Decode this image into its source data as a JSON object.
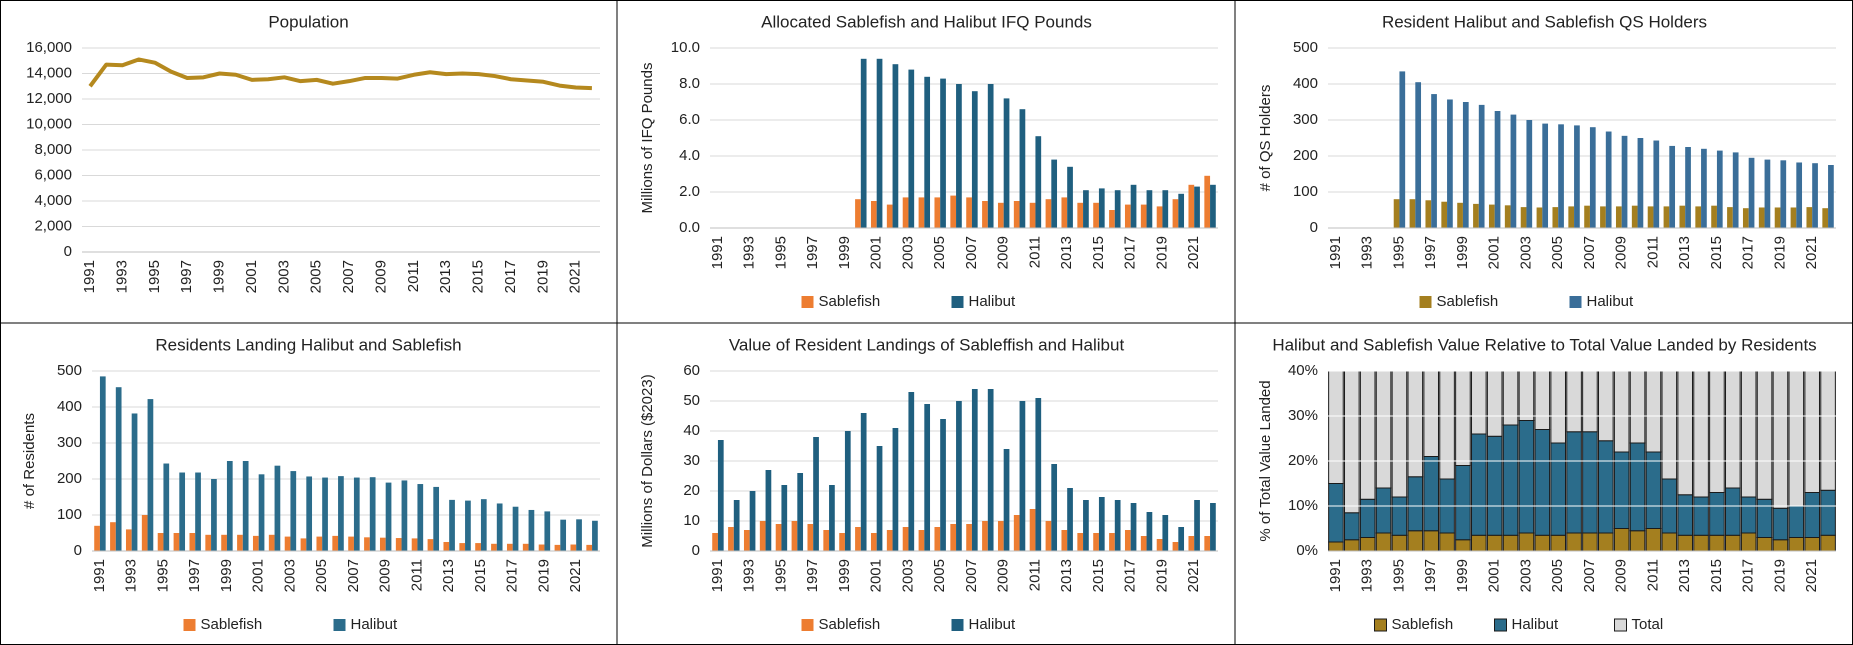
{
  "chart_data": [
    {
      "type": "line",
      "title": "Population",
      "categories": [
        1991,
        null,
        1993,
        null,
        1995,
        null,
        1997,
        null,
        1999,
        null,
        2001,
        null,
        2003,
        null,
        2005,
        null,
        2007,
        null,
        2009,
        null,
        2011,
        null,
        2013,
        null,
        2015,
        null,
        2017,
        null,
        2019,
        null,
        2021,
        null
      ],
      "series": [
        {
          "name": "Population",
          "color": "#b5891e",
          "values": [
            13000,
            14700,
            14650,
            15100,
            14850,
            14150,
            13650,
            13700,
            14000,
            13900,
            13500,
            13550,
            13700,
            13400,
            13500,
            13200,
            13400,
            13650,
            13650,
            13600,
            13900,
            14100,
            13950,
            14000,
            13950,
            13800,
            13550,
            13450,
            13350,
            13050,
            12900,
            12850
          ]
        }
      ],
      "ylim": [
        0,
        16000
      ],
      "yticks": [
        0,
        {
          "value": 2000,
          "label": "2,000"
        },
        {
          "value": 4000,
          "label": "4,000"
        },
        {
          "value": 6000,
          "label": "6,000"
        },
        {
          "value": 8000,
          "label": "8,000"
        },
        {
          "value": 10000,
          "label": "10,000"
        },
        {
          "value": 12000,
          "label": "12,000"
        },
        {
          "value": 14000,
          "label": "14,000"
        },
        {
          "value": 16000,
          "label": "16,000"
        }
      ],
      "grid": true,
      "grid_color": "#d9d9d9"
    },
    {
      "type": "bar",
      "title": "Allocated Sablefish and Halibut IFQ Pounds",
      "ylabel": "Millions of IFQ Pounds",
      "categories": [
        1991,
        null,
        1993,
        null,
        1995,
        null,
        1997,
        null,
        1999,
        null,
        2001,
        null,
        2003,
        null,
        2005,
        null,
        2007,
        null,
        2009,
        null,
        2011,
        null,
        2013,
        null,
        2015,
        null,
        2017,
        null,
        2019,
        null,
        2021,
        null
      ],
      "series": [
        {
          "name": "Sablefish",
          "color": "#ed7d31",
          "values": [
            null,
            null,
            null,
            null,
            null,
            null,
            null,
            null,
            null,
            1.6,
            1.5,
            1.3,
            1.7,
            1.7,
            1.7,
            1.8,
            1.7,
            1.5,
            1.4,
            1.5,
            1.4,
            1.6,
            1.7,
            1.4,
            1.4,
            1.0,
            1.3,
            1.3,
            1.2,
            1.6,
            2.4,
            2.9
          ]
        },
        {
          "name": "Halibut",
          "color": "#1f5f7f",
          "values": [
            null,
            null,
            null,
            null,
            null,
            null,
            null,
            null,
            null,
            9.4,
            9.4,
            9.1,
            8.8,
            8.4,
            8.3,
            8.0,
            7.6,
            8.0,
            7.2,
            6.6,
            5.1,
            3.8,
            3.4,
            2.1,
            2.2,
            2.1,
            2.4,
            2.1,
            2.1,
            1.9,
            2.3,
            2.4
          ]
        }
      ],
      "ylim": [
        0,
        10
      ],
      "yticks": [
        {
          "value": 0,
          "label": "0.0"
        },
        {
          "value": 2,
          "label": "2.0"
        },
        {
          "value": 4,
          "label": "4.0"
        },
        {
          "value": 6,
          "label": "6.0"
        },
        {
          "value": 8,
          "label": "8.0"
        },
        {
          "value": 10,
          "label": "10.0"
        }
      ],
      "grid": true,
      "grid_color": "#d9d9d9",
      "legend": "bottom"
    },
    {
      "type": "bar",
      "title": "Resident Halibut and Sablefish QS Holders",
      "ylabel": "# of QS Holders",
      "categories": [
        1991,
        null,
        1993,
        null,
        1995,
        null,
        1997,
        null,
        1999,
        null,
        2001,
        null,
        2003,
        null,
        2005,
        null,
        2007,
        null,
        2009,
        null,
        2011,
        null,
        2013,
        null,
        2015,
        null,
        2017,
        null,
        2019,
        null,
        2021,
        null
      ],
      "series": [
        {
          "name": "Sablefish",
          "color": "#a47f1f",
          "values": [
            null,
            null,
            null,
            null,
            80,
            80,
            77,
            73,
            70,
            67,
            65,
            63,
            58,
            57,
            58,
            60,
            62,
            60,
            60,
            62,
            60,
            60,
            62,
            60,
            62,
            58,
            55,
            57,
            57,
            57,
            58,
            55
          ]
        },
        {
          "name": "Halibut",
          "color": "#3a6e99",
          "values": [
            null,
            null,
            null,
            null,
            435,
            405,
            372,
            357,
            350,
            342,
            325,
            315,
            300,
            290,
            288,
            285,
            280,
            268,
            256,
            250,
            243,
            228,
            225,
            220,
            215,
            210,
            195,
            190,
            188,
            182,
            180,
            175
          ]
        }
      ],
      "ylim": [
        0,
        500
      ],
      "yticks": [
        0,
        100,
        200,
        300,
        400,
        500
      ],
      "grid": true,
      "grid_color": "#d9d9d9",
      "legend": "bottom"
    },
    {
      "type": "bar",
      "title": "Residents Landing Halibut and Sablefish",
      "ylabel": "# of Residents",
      "categories": [
        1991,
        null,
        1993,
        null,
        1995,
        null,
        1997,
        null,
        1999,
        null,
        2001,
        null,
        2003,
        null,
        2005,
        null,
        2007,
        null,
        2009,
        null,
        2011,
        null,
        2013,
        null,
        2015,
        null,
        2017,
        null,
        2019,
        null,
        2021,
        null
      ],
      "series": [
        {
          "name": "Sablefish",
          "color": "#ed7d31",
          "values": [
            70,
            80,
            60,
            100,
            50,
            50,
            50,
            45,
            45,
            45,
            42,
            45,
            40,
            35,
            40,
            42,
            40,
            38,
            37,
            36,
            35,
            33,
            25,
            22,
            22,
            20,
            20,
            20,
            18,
            17,
            18,
            17
          ]
        },
        {
          "name": "Halibut",
          "color": "#2b6c8b",
          "values": [
            485,
            455,
            382,
            422,
            243,
            218,
            218,
            200,
            250,
            250,
            213,
            237,
            222,
            207,
            204,
            208,
            204,
            205,
            190,
            196,
            186,
            178,
            142,
            140,
            144,
            132,
            123,
            114,
            110,
            87,
            88,
            84
          ]
        }
      ],
      "ylim": [
        0,
        500
      ],
      "yticks": [
        0,
        100,
        200,
        300,
        400,
        500
      ],
      "grid": true,
      "grid_color": "#d9d9d9",
      "legend": "bottom"
    },
    {
      "type": "bar",
      "title": "Value of Resident Landings of Sableffish and Halibut",
      "ylabel": "Millions of Dollars ($2023)",
      "categories": [
        1991,
        null,
        1993,
        null,
        1995,
        null,
        1997,
        null,
        1999,
        null,
        2001,
        null,
        2003,
        null,
        2005,
        null,
        2007,
        null,
        2009,
        null,
        2011,
        null,
        2013,
        null,
        2015,
        null,
        2017,
        null,
        2019,
        null,
        2021,
        null
      ],
      "series": [
        {
          "name": "Sablefish",
          "color": "#ed7d31",
          "values": [
            6,
            8,
            7,
            10,
            9,
            10,
            9,
            7,
            6,
            8,
            6,
            7,
            8,
            7,
            8,
            9,
            9,
            10,
            10,
            12,
            14,
            10,
            7,
            6,
            6,
            6,
            7,
            5,
            4,
            3,
            5,
            5
          ]
        },
        {
          "name": "Halibut",
          "color": "#1f5f7f",
          "values": [
            37,
            17,
            20,
            27,
            22,
            26,
            38,
            22,
            40,
            46,
            35,
            41,
            53,
            49,
            44,
            50,
            54,
            54,
            34,
            50,
            51,
            29,
            21,
            17,
            18,
            17,
            16,
            13,
            12,
            8,
            17,
            16
          ]
        }
      ],
      "ylim": [
        0,
        60
      ],
      "yticks": [
        0,
        10,
        20,
        30,
        40,
        50,
        60
      ],
      "grid": true,
      "grid_color": "#d9d9d9",
      "legend": "bottom"
    },
    {
      "type": "stacked_bar",
      "title": "Halibut and Sablefish Value Relative to Total Value Landed by Residents",
      "ylabel": "% of Total Value Landed",
      "categories": [
        1991,
        null,
        1993,
        null,
        1995,
        null,
        1997,
        null,
        1999,
        null,
        2001,
        null,
        2003,
        null,
        2005,
        null,
        2007,
        null,
        2009,
        null,
        2011,
        null,
        2013,
        null,
        2015,
        null,
        2017,
        null,
        2019,
        null,
        2021,
        null
      ],
      "series": [
        {
          "name": "Sablefish",
          "color": "#a47f1f",
          "values": [
            2,
            2.5,
            3,
            4,
            3.5,
            4.5,
            4.5,
            4,
            2.5,
            3.5,
            3.5,
            3.5,
            4,
            3.5,
            3.5,
            4,
            4,
            4,
            5,
            4.5,
            5,
            4,
            3.5,
            3.5,
            3.5,
            3.5,
            4,
            3,
            2.5,
            3,
            3,
            3.5
          ]
        },
        {
          "name": "Halibut",
          "color": "#2b6c8b",
          "values": [
            13,
            6,
            8.5,
            10,
            8.5,
            12,
            16.5,
            12,
            16.5,
            22.5,
            22,
            24.5,
            25,
            23.5,
            20.5,
            22.5,
            22.5,
            20.5,
            17,
            19.5,
            17,
            12,
            9,
            8.5,
            9.5,
            10.5,
            8,
            8.5,
            7,
            7,
            10,
            10
          ]
        },
        {
          "name": "Total",
          "color": "#d9d9d9",
          "values": [
            85,
            91.5,
            88.5,
            86,
            88,
            83.5,
            79,
            84,
            81,
            74,
            74.5,
            72,
            71,
            73,
            76,
            73.5,
            73.5,
            75.5,
            78,
            76,
            78,
            84,
            87.5,
            88,
            87,
            86,
            88,
            88.5,
            90.5,
            90,
            87,
            86.5
          ]
        }
      ],
      "ylim": [
        0,
        40
      ],
      "yticks": [
        {
          "value": 0,
          "label": "0%"
        },
        {
          "value": 10,
          "label": "10%"
        },
        {
          "value": 20,
          "label": "20%"
        },
        {
          "value": 30,
          "label": "30%"
        },
        {
          "value": 40,
          "label": "40%"
        }
      ],
      "grid": true,
      "grid_color": "#ffffff",
      "bar_stroke": "#1a1a1a",
      "legend": "bottom"
    }
  ]
}
